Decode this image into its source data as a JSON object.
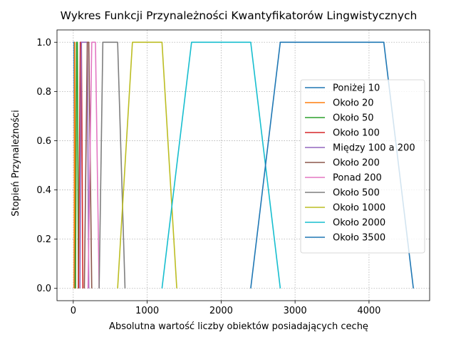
{
  "chart_data": {
    "type": "line",
    "title": "Wykres Funkcji Przynależności Kwantyfikatorów Lingwistycznych",
    "xlabel": "Absolutna wartość liczby obiektów posiadających cechę",
    "ylabel": "Stopień Przynależności",
    "xlim": [
      -220,
      4820
    ],
    "ylim": [
      -0.05,
      1.05
    ],
    "xticks": [
      0,
      1000,
      2000,
      3000,
      4000
    ],
    "yticks": [
      0.0,
      0.2,
      0.4,
      0.6,
      0.8,
      1.0
    ],
    "xtick_labels": [
      "0",
      "1000",
      "2000",
      "3000",
      "4000"
    ],
    "ytick_labels": [
      "0.0",
      "0.2",
      "0.4",
      "0.6",
      "0.8",
      "1.0"
    ],
    "grid": true,
    "legend_position": "right",
    "series": [
      {
        "name": "Poniżej 10",
        "color": "#1f77b4",
        "x": [
          0,
          10,
          20
        ],
        "y": [
          1,
          1,
          0
        ]
      },
      {
        "name": "Około 20",
        "color": "#ff7f0e",
        "x": [
          10,
          20,
          30
        ],
        "y": [
          0,
          1,
          0
        ]
      },
      {
        "name": "Około 50",
        "color": "#2ca02c",
        "x": [
          30,
          45,
          55,
          70
        ],
        "y": [
          0,
          1,
          1,
          0
        ]
      },
      {
        "name": "Około 100",
        "color": "#d62728",
        "x": [
          70,
          95,
          110,
          130
        ],
        "y": [
          0,
          1,
          1,
          0
        ]
      },
      {
        "name": "Między 100 a 200",
        "color": "#9467bd",
        "x": [
          90,
          110,
          190,
          210
        ],
        "y": [
          0,
          1,
          1,
          0
        ]
      },
      {
        "name": "Około 200",
        "color": "#8c564b",
        "x": [
          150,
          190,
          210,
          250
        ],
        "y": [
          0,
          1,
          1,
          0
        ]
      },
      {
        "name": "Ponad 200",
        "color": "#e377c2",
        "x": [
          200,
          250,
          300,
          350
        ],
        "y": [
          0,
          1,
          1,
          0
        ]
      },
      {
        "name": "Około 500",
        "color": "#7f7f7f",
        "x": [
          350,
          400,
          600,
          700
        ],
        "y": [
          0,
          1,
          1,
          0
        ]
      },
      {
        "name": "Około 1000",
        "color": "#bcbd22",
        "x": [
          600,
          800,
          1200,
          1400
        ],
        "y": [
          0,
          1,
          1,
          0
        ]
      },
      {
        "name": "Około 2000",
        "color": "#17becf",
        "x": [
          1200,
          1600,
          2400,
          2800
        ],
        "y": [
          0,
          1,
          1,
          0
        ]
      },
      {
        "name": "Około 3500",
        "color": "#1f77b4",
        "x": [
          2400,
          2800,
          4200,
          4600
        ],
        "y": [
          0,
          1,
          1,
          0
        ]
      }
    ]
  }
}
